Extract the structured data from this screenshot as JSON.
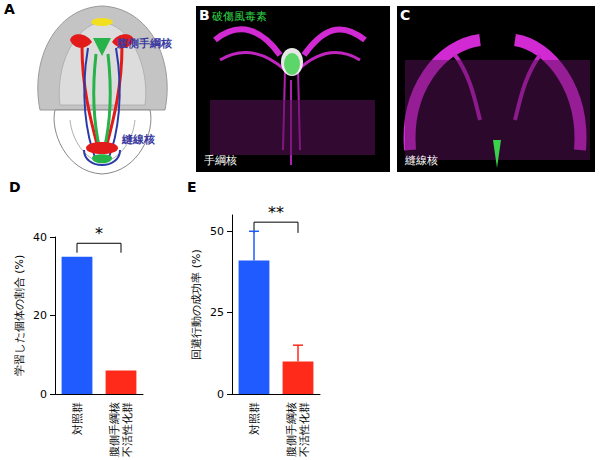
{
  "panels": [
    {
      "label": "A",
      "annotations": [
        "腹側手綱核",
        "縫線核"
      ]
    },
    {
      "label": "B",
      "annotations": [
        "破傷風毒素",
        "手綱核"
      ]
    },
    {
      "label": "C",
      "annotations": [
        "縫線核"
      ]
    }
  ],
  "chart_data": [
    {
      "type": "bar",
      "title": "D",
      "ylabel": "学習した個体の割合 (%)",
      "categories": [
        "対照群",
        "腹側手綱核\n不活性化群"
      ],
      "values": [
        35,
        6
      ],
      "colors": [
        "#1f5bff",
        "#ff2a1a"
      ],
      "ylim": [
        0,
        40
      ],
      "yticks": [
        0,
        20,
        40
      ],
      "grid": false,
      "annotation": "*"
    },
    {
      "type": "bar",
      "title": "E",
      "ylabel": "回避行動の成功率 (%)",
      "categories": [
        "対照群",
        "腹側手綱核\n不活性化群"
      ],
      "values": [
        41,
        10
      ],
      "errors": [
        9,
        5
      ],
      "colors": [
        "#1f5bff",
        "#ff2a1a"
      ],
      "ylim": [
        0,
        55
      ],
      "yticks": [
        0,
        25,
        50
      ],
      "grid": false,
      "annotation": "**"
    }
  ]
}
